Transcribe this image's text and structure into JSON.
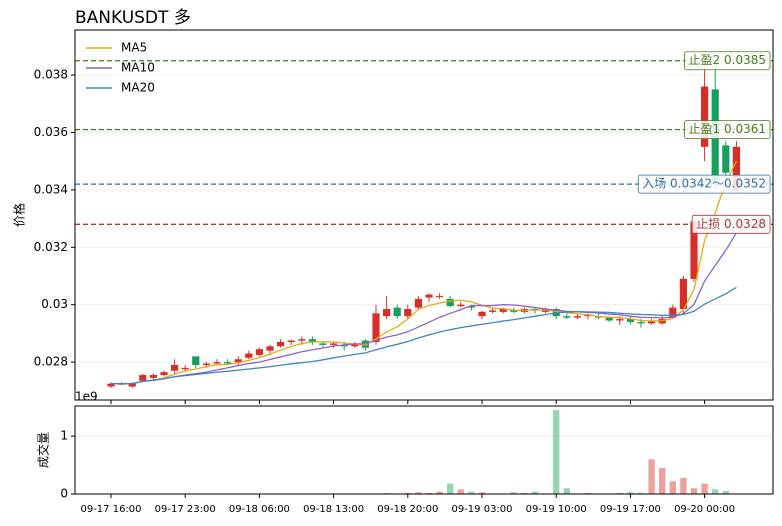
{
  "chart_data": {
    "type": "candlestick",
    "title": "BANKUSDT  多",
    "ylabel": "价格",
    "categories": [
      "09-17 16:00",
      null,
      null,
      null,
      null,
      null,
      null,
      "09-17 23:00",
      null,
      null,
      null,
      null,
      null,
      null,
      "09-18 06:00",
      null,
      null,
      null,
      null,
      null,
      null,
      "09-18 13:00",
      null,
      null,
      null,
      null,
      null,
      null,
      "09-18 20:00",
      null,
      null,
      null,
      null,
      null,
      null,
      "09-19 03:00",
      null,
      null,
      null,
      null,
      null,
      null,
      "09-19 10:00",
      null,
      null,
      null,
      null,
      null,
      null,
      "09-19 17:00",
      null,
      null,
      null,
      null,
      null,
      null,
      "09-20 00:00",
      null,
      null,
      null
    ],
    "open": [
      0.02715,
      0.02722,
      0.02715,
      0.02735,
      0.02745,
      0.02755,
      0.0277,
      0.02775,
      0.0282,
      0.0279,
      0.02795,
      0.028,
      0.028,
      0.02815,
      0.02825,
      0.0284,
      0.02855,
      0.0287,
      0.02875,
      0.0288,
      0.02865,
      0.0286,
      0.0286,
      0.02855,
      0.02875,
      0.0287,
      0.0296,
      0.0299,
      0.0296,
      0.0299,
      0.03025,
      0.0303,
      0.0302,
      0.02995,
      0.02995,
      0.0296,
      0.02975,
      0.02975,
      0.0298,
      0.02975,
      0.02985,
      0.02975,
      0.02985,
      0.0296,
      0.02955,
      0.0296,
      0.0296,
      0.02955,
      0.02945,
      0.0295,
      0.0294,
      0.02935,
      0.02935,
      0.02955,
      0.02985,
      0.0309,
      0.0355,
      0.0375,
      0.03555,
      0.034
    ],
    "close": [
      0.02725,
      0.02725,
      0.02725,
      0.02755,
      0.02755,
      0.02765,
      0.0279,
      0.0278,
      0.0279,
      0.02795,
      0.028,
      0.02795,
      0.0281,
      0.0283,
      0.02845,
      0.02855,
      0.0287,
      0.02875,
      0.0288,
      0.0287,
      0.0286,
      0.02865,
      0.02855,
      0.02865,
      0.0285,
      0.0297,
      0.02985,
      0.0296,
      0.02985,
      0.0302,
      0.03035,
      0.0303,
      0.02995,
      0.03,
      0.0299,
      0.02975,
      0.0298,
      0.02985,
      0.02975,
      0.02985,
      0.0298,
      0.02985,
      0.0296,
      0.02955,
      0.0296,
      0.02965,
      0.02955,
      0.02945,
      0.0295,
      0.0294,
      0.02935,
      0.02945,
      0.0295,
      0.0299,
      0.0309,
      0.0329,
      0.0376,
      0.0343,
      0.0346,
      0.0355
    ],
    "high": [
      0.0273,
      0.0273,
      0.0273,
      0.0276,
      0.0276,
      0.0277,
      0.0281,
      0.0279,
      0.0282,
      0.028,
      0.0281,
      0.0281,
      0.0282,
      0.0284,
      0.0285,
      0.0286,
      0.0288,
      0.0288,
      0.0289,
      0.0289,
      0.0287,
      0.0287,
      0.0287,
      0.0287,
      0.0288,
      0.03,
      0.0303,
      0.03,
      0.03,
      0.0303,
      0.0304,
      0.0304,
      0.0303,
      0.0301,
      0.03,
      0.0298,
      0.0299,
      0.0299,
      0.0299,
      0.0299,
      0.0299,
      0.0299,
      0.0299,
      0.0297,
      0.0297,
      0.0297,
      0.0297,
      0.0296,
      0.0296,
      0.0296,
      0.0295,
      0.0295,
      0.0296,
      0.03,
      0.031,
      0.033,
      0.0386,
      0.0385,
      0.0357,
      0.0357
    ],
    "low": [
      0.0271,
      0.0272,
      0.0271,
      0.0273,
      0.0274,
      0.0275,
      0.0276,
      0.0277,
      0.0278,
      0.0278,
      0.0279,
      0.0279,
      0.0279,
      0.0281,
      0.0282,
      0.0283,
      0.0285,
      0.0286,
      0.0286,
      0.0286,
      0.0285,
      0.0285,
      0.0284,
      0.0285,
      0.0284,
      0.0286,
      0.0295,
      0.0295,
      0.0295,
      0.0298,
      0.0301,
      0.0302,
      0.0299,
      0.0299,
      0.0298,
      0.0295,
      0.0297,
      0.0297,
      0.0297,
      0.0297,
      0.0297,
      0.0297,
      0.0295,
      0.0295,
      0.0295,
      0.0295,
      0.0295,
      0.0294,
      0.0293,
      0.0293,
      0.0292,
      0.0293,
      0.0293,
      0.0295,
      0.0297,
      0.0308,
      0.035,
      0.034,
      0.0344,
      0.0339
    ],
    "up_color": "#d62f2a",
    "down_color": "#16a05d",
    "ylim": [
      0.02668,
      0.03957
    ],
    "yticks": [
      0.028,
      0.03,
      0.032,
      0.034,
      0.036,
      0.038
    ],
    "grid": true,
    "legend": "upper left",
    "series": [
      {
        "name": "MA5",
        "color": "#e8a912",
        "values": [
          0.02725,
          0.02725,
          0.02725,
          0.02733,
          0.02737,
          0.02745,
          0.02758,
          0.02769,
          0.02776,
          0.02784,
          0.02791,
          0.02792,
          0.02798,
          0.02806,
          0.02816,
          0.02827,
          0.02842,
          0.02855,
          0.02865,
          0.0287,
          0.02871,
          0.0287,
          0.02866,
          0.02863,
          0.02859,
          0.02881,
          0.02905,
          0.02923,
          0.0295,
          0.02984,
          0.02997,
          0.03006,
          0.03013,
          0.03016,
          0.0301,
          0.02998,
          0.02988,
          0.02986,
          0.02981,
          0.0298,
          0.02981,
          0.02982,
          0.02977,
          0.02973,
          0.02968,
          0.02965,
          0.02959,
          0.02956,
          0.02955,
          0.02951,
          0.02945,
          0.02943,
          0.02944,
          0.02952,
          0.02982,
          0.03053,
          0.03223,
          0.0332,
          0.03426,
          0.035
        ]
      },
      {
        "name": "MA10",
        "color": "#8a64c8",
        "values": [
          0.02725,
          0.02725,
          0.02725,
          0.02733,
          0.02737,
          0.02742,
          0.02749,
          0.02755,
          0.0276,
          0.02765,
          0.02773,
          0.0278,
          0.02788,
          0.02795,
          0.028,
          0.02809,
          0.02818,
          0.02827,
          0.02836,
          0.02843,
          0.02849,
          0.02856,
          0.0286,
          0.02863,
          0.02864,
          0.02876,
          0.02887,
          0.02895,
          0.02906,
          0.02922,
          0.02939,
          0.02956,
          0.0297,
          0.02983,
          0.02997,
          0.02997,
          0.02997,
          0.03,
          0.02999,
          0.02995,
          0.0299,
          0.02985,
          0.02981,
          0.02977,
          0.02975,
          0.02973,
          0.02971,
          0.02967,
          0.02965,
          0.0296,
          0.02956,
          0.02955,
          0.02954,
          0.02956,
          0.02969,
          0.03001,
          0.03082,
          0.03137,
          0.0319,
          0.0325
        ]
      },
      {
        "name": "MA20",
        "color": "#3d87c8",
        "values": [
          0.02725,
          0.02725,
          0.02725,
          0.02733,
          0.02737,
          0.02742,
          0.02749,
          0.02753,
          0.02757,
          0.02761,
          0.02765,
          0.02768,
          0.02772,
          0.02776,
          0.0278,
          0.02784,
          0.02789,
          0.02794,
          0.02798,
          0.02802,
          0.02808,
          0.02815,
          0.02821,
          0.02827,
          0.02832,
          0.02843,
          0.02853,
          0.02862,
          0.02872,
          0.02884,
          0.02895,
          0.02905,
          0.02913,
          0.0292,
          0.02926,
          0.02932,
          0.02937,
          0.02943,
          0.02948,
          0.02954,
          0.0296,
          0.02966,
          0.02971,
          0.02974,
          0.02976,
          0.02975,
          0.02974,
          0.02973,
          0.0297,
          0.02968,
          0.02966,
          0.02965,
          0.02963,
          0.02963,
          0.02966,
          0.02977,
          0.03002,
          0.0302,
          0.03038,
          0.0306
        ]
      }
    ],
    "levels": [
      {
        "label": "止盈2 0.0385",
        "value": 0.0385,
        "color": "#4a7a1e"
      },
      {
        "label": "止盈1 0.0361",
        "value": 0.0361,
        "color": "#4a7a1e"
      },
      {
        "label": "入场 0.0342～0.0352",
        "value": 0.0342,
        "color": "#2f6f9f"
      },
      {
        "label": "止损 0.0328",
        "value": 0.0328,
        "color": "#a33a3a"
      }
    ],
    "volume": {
      "ylabel": "成交量",
      "offset_label": "1e9",
      "ylim": [
        0,
        1.52
      ],
      "yticks": [
        0,
        1
      ],
      "values": [
        0.002,
        0.002,
        0.002,
        0.002,
        0.002,
        0.002,
        0.002,
        0.002,
        0.002,
        0.002,
        0.002,
        0.002,
        0.002,
        0.002,
        0.002,
        0.002,
        0.002,
        0.002,
        0.002,
        0.002,
        0.002,
        0.002,
        0.002,
        0.002,
        0.002,
        0.01,
        0.015,
        0.01,
        0.02,
        0.03,
        0.02,
        0.04,
        0.18,
        0.08,
        0.04,
        0.03,
        0.01,
        0.01,
        0.03,
        0.02,
        0.04,
        0.01,
        1.45,
        0.1,
        0.01,
        0.02,
        0.01,
        0.01,
        0.02,
        0.03,
        0.02,
        0.6,
        0.45,
        0.22,
        0.28,
        0.1,
        0.18,
        0.08,
        0.05,
        0.01
      ]
    }
  }
}
